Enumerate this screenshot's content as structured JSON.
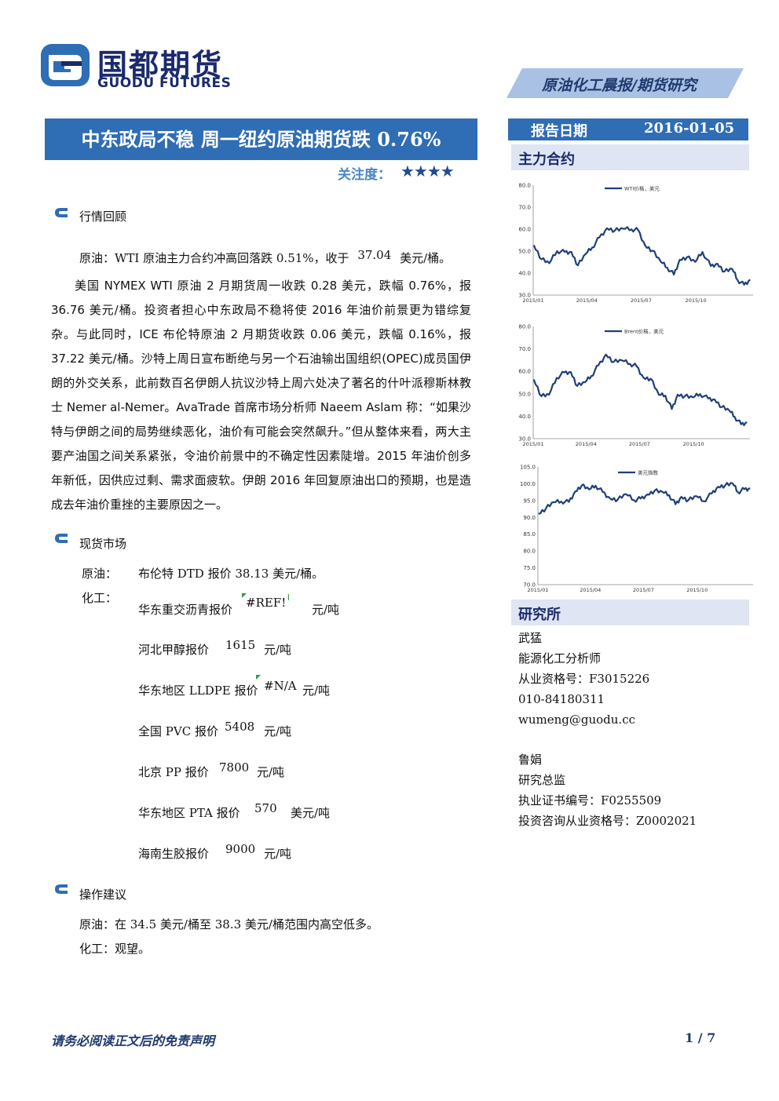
{
  "header": {
    "logo_cn": "国都期货",
    "logo_en": "GUODU FUTURES",
    "report_type": "原油化工晨报/期货研究"
  },
  "title": "中东政局不稳 周一纽约原油期货跌 0.76%",
  "attention": {
    "label": "关注度：",
    "stars": "★★★★",
    "star_count": 4
  },
  "report_date": {
    "label": "报告日期",
    "value": "2016-01-05"
  },
  "sections": {
    "review": {
      "title": "行情回顾",
      "summary_prefix": "原油：WTI 原油主力合约冲高回落跌 0.51%，收于",
      "summary_value": "37.04",
      "summary_unit": "美元/桶。",
      "body": "美国 NYMEX WTI 原油 2 月期货周一收跌 0.28 美元，跌幅 0.76%，报 36.76 美元/桶。投资者担心中东政局不稳将使 2016 年油价前景更为错综复杂。与此同时，ICE 布伦特原油 2 月期货收跌 0.06 美元，跌幅 0.16%，报 37.22 美元/桶。沙特上周日宣布断绝与另一个石油输出国组织(OPEC)成员国伊朗的外交关系，此前数百名伊朗人抗议沙特上周六处决了著名的什叶派穆斯林教士 Nemer al-Nemer。AvaTrade 首席市场分析师 Naeem Aslam 称：“如果沙特与伊朗之间的局势继续恶化，油价有可能会突然飙升。”但从整体来看，两大主要产油国之间关系紧张，令油价前景中的不确定性因素陡增。2015 年油价创多年新低，因供应过剩、需求面疲软。伊朗 2016 年回复原油出口的预期，也是造成去年油价重挫的主要原因之一。"
    },
    "spot": {
      "title": "现货市场",
      "crude_label": "原油：",
      "crude_text": "布伦特 DTD 报价 38.13 美元/桶。",
      "chem_label": "化工：",
      "items": [
        {
          "name": "华东重交沥青报价",
          "value": "#REF!",
          "unit": "元/吨"
        },
        {
          "name": "河北甲醇报价",
          "value": "1615",
          "unit": "元/吨"
        },
        {
          "name": "华东地区 LLDPE 报价",
          "value": "#N/A",
          "unit": "元/吨"
        },
        {
          "name": "全国 PVC 报价",
          "value": "5408",
          "unit": "元/吨"
        },
        {
          "name": "北京 PP 报价",
          "value": "7800",
          "unit": "元/吨"
        },
        {
          "name": "华东地区 PTA 报价",
          "value": "570",
          "unit": "美元/吨"
        },
        {
          "name": "海南生胶报价",
          "value": "9000",
          "unit": "元/吨"
        }
      ]
    },
    "advice": {
      "title": "操作建议",
      "lines": [
        "原油：在 34.5 美元/桶至 38.3 美元/桶范围内高空低多。",
        "化工：观望。"
      ]
    }
  },
  "sidebar": {
    "contracts_title": "主力合约",
    "research_title": "研究所",
    "analysts": [
      {
        "lines": [
          "武猛",
          "能源化工分析师",
          "从业资格号：F3015226",
          "010-84180311",
          "wumeng@guodu.cc"
        ]
      },
      {
        "lines": [
          "鲁娟",
          "研究总监",
          "执业证书编号：F0255509",
          "投资咨询从业资格号：Z0002021"
        ]
      }
    ]
  },
  "footer": {
    "disclaimer": "请务必阅读正文后的免责声明",
    "page": "1 / 7"
  },
  "colors": {
    "brand_blue": "#2f6db5",
    "navy": "#1a2a6c",
    "line": "#1f3f7a",
    "side_bg": "#dfe5f2"
  },
  "chart_data": [
    {
      "type": "line",
      "series": [
        {
          "name": "WTI价格，美元",
          "x": [
            "2015-01-02",
            "2015-01-15",
            "2015-01-28",
            "2015-02-10",
            "2015-02-23",
            "2015-03-06",
            "2015-03-17",
            "2015-03-30",
            "2015-04-10",
            "2015-04-22",
            "2015-05-05",
            "2015-05-18",
            "2015-06-01",
            "2015-06-15",
            "2015-06-26",
            "2015-07-08",
            "2015-07-20",
            "2015-08-03",
            "2015-08-14",
            "2015-08-25",
            "2015-09-04",
            "2015-09-16",
            "2015-09-30",
            "2015-10-12",
            "2015-10-26",
            "2015-11-06",
            "2015-11-18",
            "2015-12-01",
            "2015-12-10",
            "2015-12-21",
            "2015-12-31"
          ],
          "values": [
            52.7,
            46.3,
            44.5,
            50.0,
            49.6,
            49.6,
            43.5,
            48.7,
            51.6,
            56.2,
            60.4,
            59.4,
            60.2,
            59.9,
            59.6,
            52.5,
            50.2,
            45.2,
            42.5,
            39.3,
            46.1,
            47.2,
            45.1,
            49.6,
            43.2,
            44.3,
            40.7,
            41.9,
            36.8,
            34.7,
            37.0
          ]
        }
      ],
      "xticks": [
        "2015/01",
        "2015/04",
        "2015/07",
        "2015/10"
      ],
      "yticks": [
        "30.0",
        "40.0",
        "50.0",
        "60.0",
        "70.0",
        "80.0"
      ],
      "ylim": [
        30,
        80
      ]
    },
    {
      "type": "line",
      "series": [
        {
          "name": "Brent价格，美元",
          "x": [
            "2015-01-02",
            "2015-01-15",
            "2015-01-28",
            "2015-02-10",
            "2015-02-23",
            "2015-03-06",
            "2015-03-17",
            "2015-03-30",
            "2015-04-10",
            "2015-04-22",
            "2015-05-05",
            "2015-05-18",
            "2015-06-01",
            "2015-06-15",
            "2015-06-26",
            "2015-07-08",
            "2015-07-20",
            "2015-08-03",
            "2015-08-14",
            "2015-08-25",
            "2015-09-04",
            "2015-09-16",
            "2015-09-30",
            "2015-10-12",
            "2015-10-26",
            "2015-11-06",
            "2015-11-18",
            "2015-12-01",
            "2015-12-10",
            "2015-12-21",
            "2015-12-31"
          ],
          "values": [
            56.4,
            48.9,
            49.6,
            57.1,
            59.5,
            59.7,
            53.5,
            55.1,
            57.9,
            62.7,
            67.5,
            64.2,
            64.9,
            63.3,
            62.3,
            57.1,
            56.7,
            49.5,
            49.2,
            43.2,
            49.6,
            48.9,
            48.4,
            49.9,
            47.9,
            47.4,
            44.1,
            42.5,
            39.7,
            36.4,
            37.3
          ]
        }
      ],
      "xticks": [
        "2015/01",
        "2015/04",
        "2015/07",
        "2015/10"
      ],
      "yticks": [
        "30.0",
        "40.0",
        "50.0",
        "60.0",
        "70.0",
        "80.0"
      ],
      "ylim": [
        30,
        80
      ]
    },
    {
      "type": "line",
      "series": [
        {
          "name": "美元指数",
          "x": [
            "2015-01-02",
            "2015-01-15",
            "2015-01-28",
            "2015-02-10",
            "2015-02-23",
            "2015-03-06",
            "2015-03-17",
            "2015-03-30",
            "2015-04-10",
            "2015-04-22",
            "2015-05-05",
            "2015-05-18",
            "2015-06-01",
            "2015-06-15",
            "2015-06-26",
            "2015-07-08",
            "2015-07-20",
            "2015-08-03",
            "2015-08-14",
            "2015-08-25",
            "2015-09-04",
            "2015-09-16",
            "2015-09-30",
            "2015-10-12",
            "2015-10-26",
            "2015-11-06",
            "2015-11-18",
            "2015-12-01",
            "2015-12-10",
            "2015-12-21",
            "2015-12-31"
          ],
          "values": [
            91.1,
            92.7,
            94.5,
            94.7,
            94.6,
            97.7,
            99.5,
            98.3,
            99.4,
            97.6,
            95.6,
            95.3,
            96.9,
            95.1,
            95.6,
            96.8,
            97.9,
            97.5,
            96.6,
            93.9,
            96.1,
            95.1,
            96.3,
            94.8,
            97.1,
            99.1,
            99.5,
            100.1,
            97.5,
            98.4,
            98.6
          ]
        }
      ],
      "xticks": [
        "2015/01",
        "2015/04",
        "2015/07",
        "2015/10"
      ],
      "yticks": [
        "70.0",
        "75.0",
        "80.0",
        "85.0",
        "90.0",
        "95.0",
        "100.0",
        "105.0"
      ],
      "ylim": [
        70,
        105
      ]
    }
  ]
}
